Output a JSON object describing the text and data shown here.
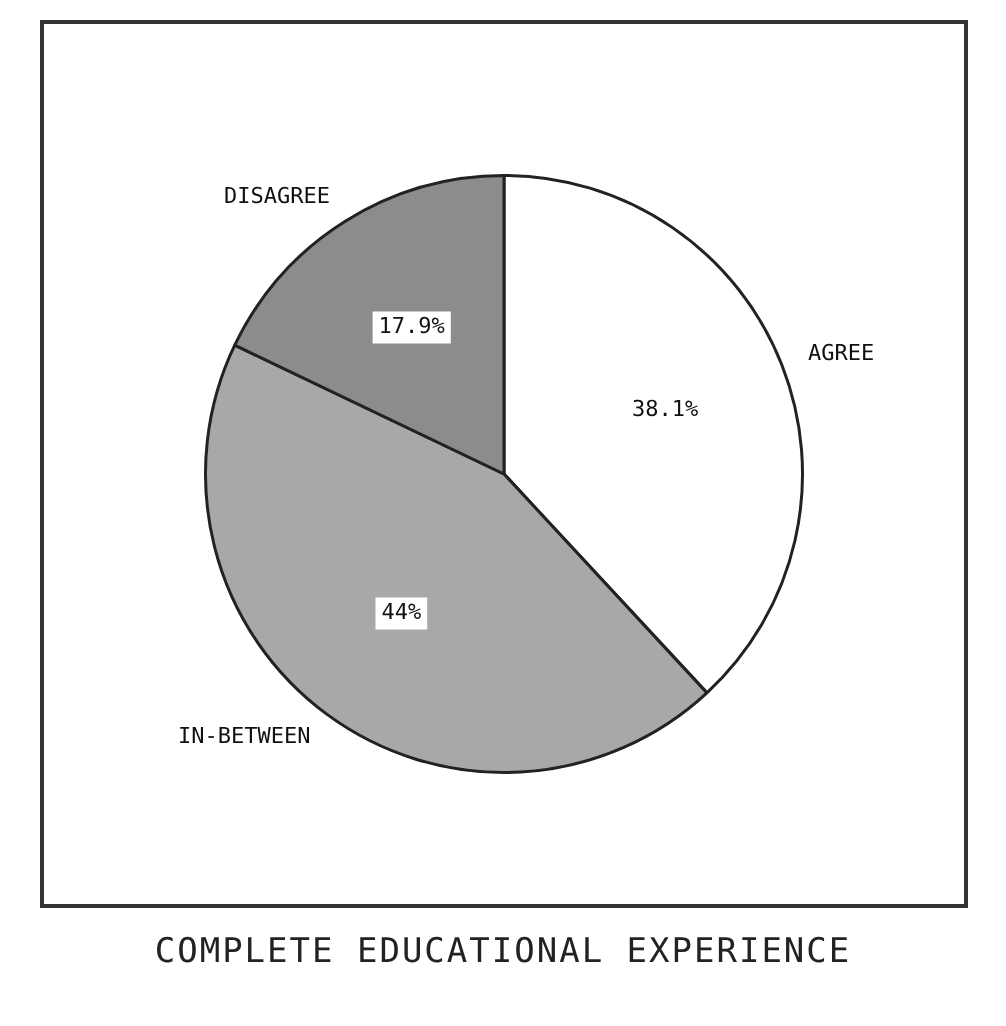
{
  "chart_data": {
    "type": "pie",
    "title": "COMPLETE EDUCATIONAL EXPERIENCE",
    "categories": [
      "AGREE",
      "IN-BETWEEN",
      "DISAGREE"
    ],
    "values": [
      38.1,
      44,
      17.9
    ],
    "value_labels": [
      "38.1%",
      "44%",
      "17.9%"
    ],
    "colors": [
      "#ffffff",
      "#a8a8a8",
      "#8c8c8c"
    ]
  }
}
